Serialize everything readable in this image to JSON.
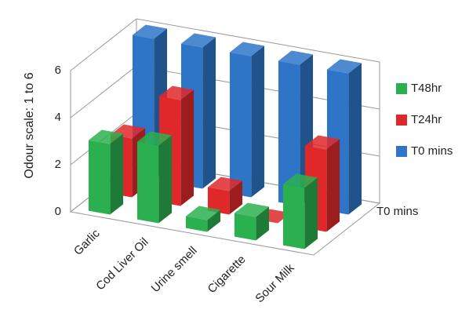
{
  "chart_data": {
    "type": "bar3d",
    "y_label": "Odour scale: 1 to 6",
    "categories": [
      "Garlic",
      "Cod Liver Oil",
      "Urine smell",
      "Cigarette",
      "Sour Milk"
    ],
    "series": [
      {
        "name": "T48hr",
        "color": "#2bb04f",
        "values": [
          3,
          3.3,
          0.5,
          1,
          2.6
        ]
      },
      {
        "name": "T24hr",
        "color": "#e0282a",
        "values": [
          2.5,
          4.5,
          1,
          0,
          3.5
        ]
      },
      {
        "name": "T0 mins",
        "color": "#2e75c8",
        "values": [
          6,
          6,
          6,
          6,
          6
        ]
      }
    ],
    "depth_labels": [
      "T0 mins"
    ],
    "ylim": [
      0,
      6
    ],
    "yticks": [
      0,
      2,
      4,
      6
    ],
    "grid": true
  }
}
